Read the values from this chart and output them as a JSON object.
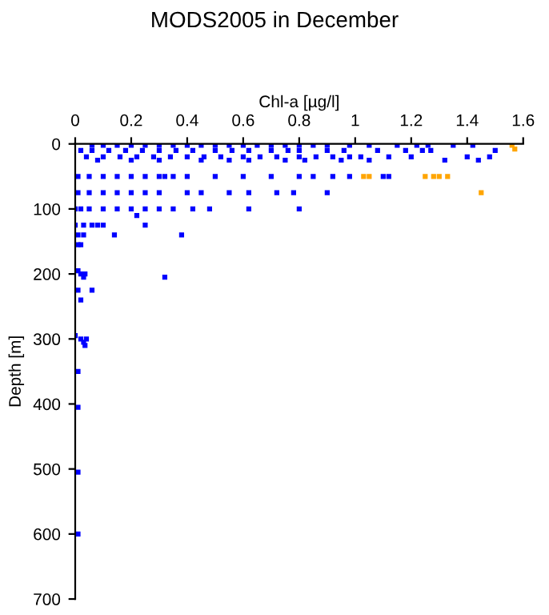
{
  "chart_data": {
    "type": "scatter",
    "title": "MODS2005 in December",
    "xlabel": "Chl-a [µg/l]",
    "ylabel": "Depth [m]",
    "xlim": [
      0,
      1.6
    ],
    "xticks": [
      0,
      0.2,
      0.4,
      0.6,
      0.8,
      1,
      1.2,
      1.4,
      1.6
    ],
    "ylim": [
      700,
      0
    ],
    "yticks": [
      0,
      100,
      200,
      300,
      400,
      500,
      600,
      700
    ],
    "grid": false,
    "legend": false,
    "marker": "square",
    "series": [
      {
        "color": "#0000ff",
        "x": [
          0.06,
          0.1,
          0.15,
          0.2,
          0.25,
          0.3,
          0.35,
          0.4,
          0.45,
          0.5,
          0.55,
          0.6,
          0.65,
          0.7,
          0.75,
          0.8,
          0.85,
          0.9,
          0.98,
          1.05,
          1.15,
          1.22,
          1.26,
          1.35,
          1.42,
          0.02,
          0.06,
          0.12,
          0.18,
          0.24,
          0.3,
          0.36,
          0.42,
          0.5,
          0.56,
          0.62,
          0.7,
          0.76,
          0.8,
          0.9,
          0.96,
          1.08,
          1.18,
          1.24,
          1.27,
          1.5,
          0.04,
          0.1,
          0.16,
          0.22,
          0.28,
          0.34,
          0.4,
          0.46,
          0.52,
          0.6,
          0.66,
          0.72,
          0.8,
          0.86,
          0.92,
          0.98,
          1.02,
          1.12,
          1.2,
          1.4,
          1.48,
          0.08,
          0.2,
          0.3,
          0.45,
          0.55,
          0.62,
          0.75,
          0.82,
          0.95,
          1.05,
          1.32,
          1.44,
          0.01,
          0.05,
          0.1,
          0.15,
          0.2,
          0.25,
          0.3,
          0.32,
          0.35,
          0.4,
          0.5,
          0.6,
          0.7,
          0.8,
          0.85,
          0.92,
          0.98,
          1.1,
          1.12,
          0.01,
          0.05,
          0.1,
          0.15,
          0.2,
          0.25,
          0.3,
          0.4,
          0.45,
          0.55,
          0.62,
          0.72,
          0.78,
          0.9,
          0.0,
          0.02,
          0.05,
          0.1,
          0.15,
          0.2,
          0.25,
          0.3,
          0.35,
          0.42,
          0.48,
          0.62,
          0.8,
          0.22,
          0.0,
          0.03,
          0.06,
          0.08,
          0.1,
          0.25,
          0.01,
          0.03,
          0.14,
          0.38,
          0.01,
          0.02,
          0.01,
          0.02,
          0.03,
          0.035,
          0.32,
          0.01,
          0.06,
          0.02,
          0.0,
          0.02,
          0.03,
          0.04,
          0.035,
          0.01,
          0.01,
          0.01,
          0.01
        ],
        "values": [
          2,
          2,
          2,
          2,
          2,
          2,
          2,
          2,
          2,
          2,
          2,
          2,
          2,
          2,
          2,
          2,
          2,
          2,
          2,
          2,
          2,
          2,
          2,
          2,
          2,
          10,
          10,
          10,
          10,
          10,
          10,
          10,
          10,
          10,
          10,
          10,
          10,
          10,
          10,
          10,
          10,
          10,
          10,
          10,
          10,
          10,
          20,
          20,
          20,
          20,
          20,
          20,
          20,
          20,
          20,
          20,
          20,
          20,
          20,
          20,
          20,
          20,
          20,
          20,
          20,
          20,
          20,
          25,
          25,
          25,
          25,
          25,
          25,
          25,
          25,
          25,
          25,
          25,
          25,
          50,
          50,
          50,
          50,
          50,
          50,
          50,
          50,
          50,
          50,
          50,
          50,
          50,
          50,
          50,
          50,
          50,
          50,
          50,
          75,
          75,
          75,
          75,
          75,
          75,
          75,
          75,
          75,
          75,
          75,
          75,
          75,
          75,
          100,
          100,
          100,
          100,
          100,
          100,
          100,
          100,
          100,
          100,
          100,
          100,
          100,
          110,
          125,
          125,
          125,
          125,
          125,
          125,
          140,
          140,
          140,
          140,
          155,
          155,
          195,
          200,
          205,
          200,
          205,
          225,
          225,
          240,
          295,
          300,
          305,
          300,
          310,
          350,
          405,
          505,
          600
        ]
      },
      {
        "color": "#ffa500",
        "x": [
          1.56,
          1.57,
          1.03,
          1.05,
          1.25,
          1.28,
          1.3,
          1.33,
          1.45
        ],
        "values": [
          2,
          8,
          50,
          50,
          50,
          50,
          50,
          50,
          75
        ]
      }
    ]
  }
}
